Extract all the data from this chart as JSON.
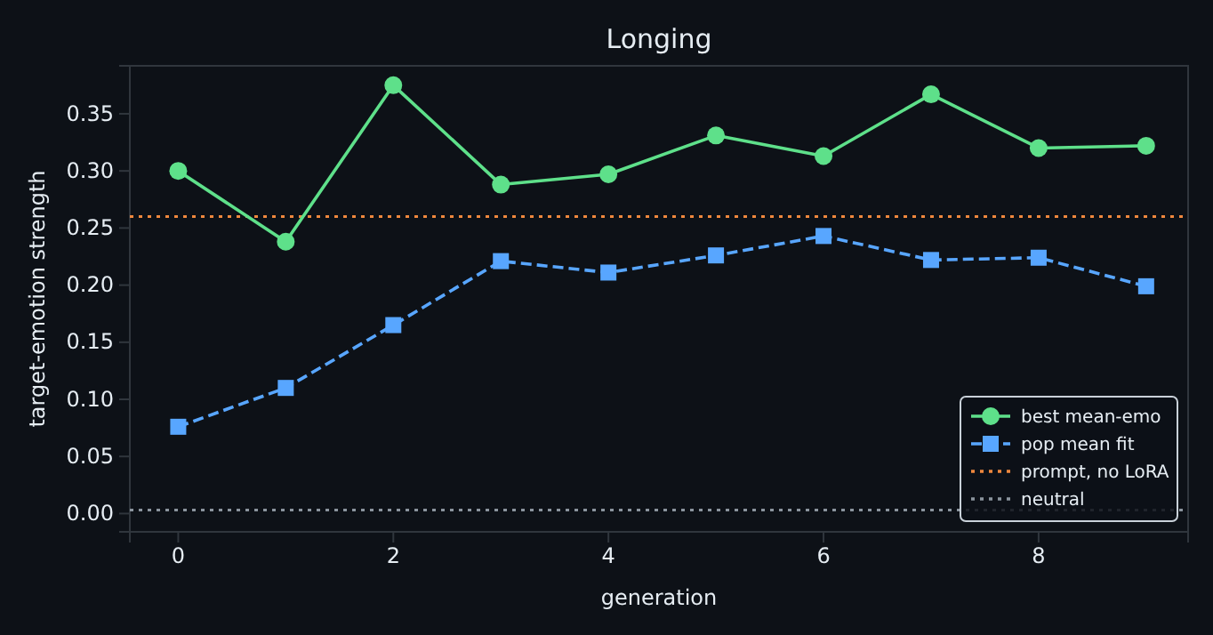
{
  "chart_data": {
    "type": "line",
    "title": "Longing",
    "xlabel": "generation",
    "ylabel": "target-emotion strength",
    "x": [
      0,
      1,
      2,
      3,
      4,
      5,
      6,
      7,
      8,
      9
    ],
    "series": [
      {
        "name": "best mean-emo",
        "color": "#5ee08a",
        "marker": "circle",
        "line_style": "solid",
        "values": [
          0.3,
          0.238,
          0.375,
          0.288,
          0.297,
          0.331,
          0.313,
          0.367,
          0.32,
          0.322
        ]
      },
      {
        "name": "pop mean fit",
        "color": "#58a6ff",
        "marker": "square",
        "line_style": "dashed",
        "values": [
          0.076,
          0.11,
          0.165,
          0.221,
          0.211,
          0.226,
          0.243,
          0.222,
          0.224,
          0.199
        ]
      }
    ],
    "ref_lines": [
      {
        "axis": "y",
        "value": 0.26,
        "label": "prompt, no LoRA",
        "color": "#f0883e",
        "line_style": "dotted"
      },
      {
        "axis": "y",
        "value": 0.003,
        "label": "neutral",
        "color": "#8b949e",
        "line_style": "dotted"
      }
    ],
    "xlim": [
      -0.45,
      9.39
    ],
    "xticks": [
      0,
      2,
      4,
      6,
      8
    ],
    "ylim": [
      -0.016,
      0.392
    ],
    "yticks": [
      {
        "value": 0,
        "label": "0.00"
      },
      {
        "value": 0.05,
        "label": "0.05"
      },
      {
        "value": 0.1,
        "label": "0.10"
      },
      {
        "value": 0.15,
        "label": "0.15"
      },
      {
        "value": 0.2,
        "label": "0.20"
      },
      {
        "value": 0.25,
        "label": "0.25"
      },
      {
        "value": 0.3,
        "label": "0.30"
      },
      {
        "value": 0.35,
        "label": "0.35"
      }
    ],
    "grid": false,
    "legend": "bottom right"
  }
}
